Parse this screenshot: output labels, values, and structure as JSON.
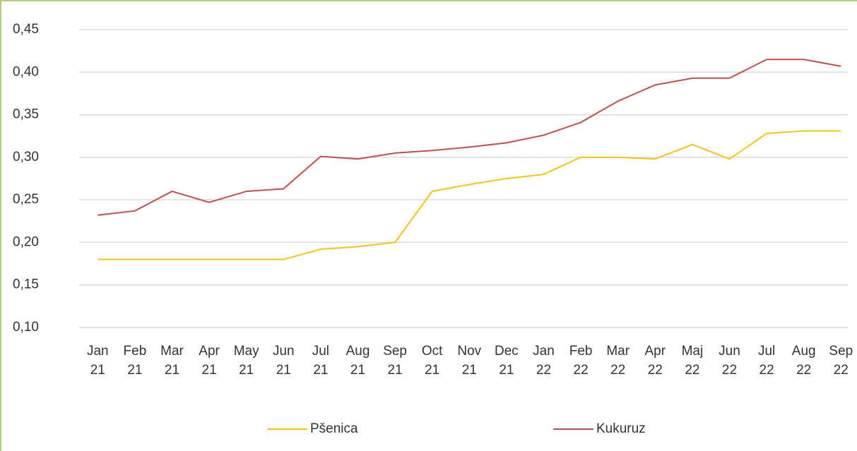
{
  "chart_data": {
    "type": "line",
    "categories": [
      "Jan 21",
      "Feb 21",
      "Mar 21",
      "Apr 21",
      "May 21",
      "Jun 21",
      "Jul 21",
      "Aug 21",
      "Sep 21",
      "Oct 21",
      "Nov 21",
      "Dec 21",
      "Jan 22",
      "Feb 22",
      "Mar 22",
      "Apr 22",
      "Maj 22",
      "Jun 22",
      "Jul 22",
      "Aug 22",
      "Sep 22"
    ],
    "series": [
      {
        "name": "Pšenica",
        "color": "#f5c21b",
        "values": [
          0.18,
          0.18,
          0.18,
          0.18,
          0.18,
          0.18,
          0.192,
          0.195,
          0.2,
          0.26,
          0.268,
          0.275,
          0.28,
          0.3,
          0.3,
          0.298,
          0.315,
          0.298,
          0.328,
          0.331,
          0.331
        ]
      },
      {
        "name": "Kukuruz",
        "color": "#c0504d",
        "values": [
          0.232,
          0.237,
          0.26,
          0.247,
          0.26,
          0.263,
          0.301,
          0.298,
          0.305,
          0.308,
          0.312,
          0.317,
          0.326,
          0.341,
          0.366,
          0.385,
          0.393,
          0.393,
          0.415,
          0.415,
          0.407
        ]
      }
    ],
    "ylim": [
      0.1,
      0.45
    ],
    "yticks": [
      {
        "value": 0.1,
        "label": "0,10"
      },
      {
        "value": 0.15,
        "label": "0,15"
      },
      {
        "value": 0.2,
        "label": "0,20"
      },
      {
        "value": 0.25,
        "label": "0,25"
      },
      {
        "value": 0.3,
        "label": "0,30"
      },
      {
        "value": 0.35,
        "label": "0,35"
      },
      {
        "value": 0.4,
        "label": "0,40"
      },
      {
        "value": 0.45,
        "label": "0,45"
      }
    ],
    "grid": true,
    "legend": "bottom"
  }
}
